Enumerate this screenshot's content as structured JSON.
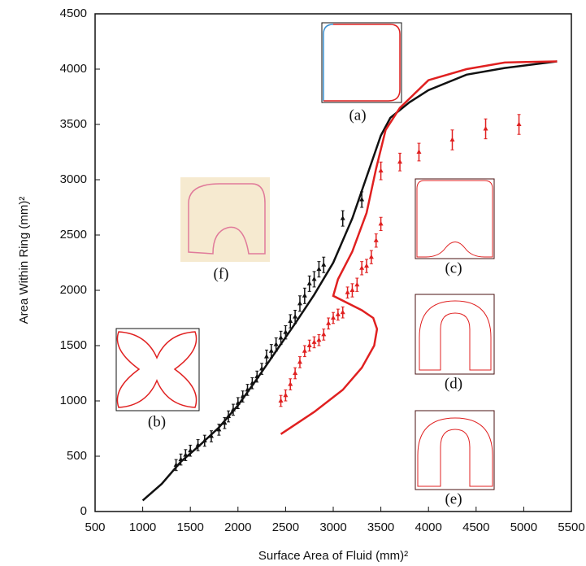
{
  "chart_data": {
    "type": "scatter",
    "x_label": "Surface Area of Fluid (mm)²",
    "y_label": "Area Within Ring (mm)²",
    "xlim": [
      500,
      5500
    ],
    "ylim": [
      0,
      4500
    ],
    "xticks": [
      500,
      1000,
      1500,
      2000,
      2500,
      3000,
      3500,
      4000,
      4500,
      5000,
      5500
    ],
    "yticks": [
      0,
      500,
      1000,
      1500,
      2000,
      2500,
      3000,
      3500,
      4000,
      4500
    ],
    "annotations": [
      "(a)",
      "(b)",
      "(c)",
      "(d)",
      "(e)",
      "(f)"
    ],
    "series": [
      {
        "color": "#111111",
        "x": [
          1000,
          1200,
          1400,
          1600,
          1800,
          2000,
          2200,
          2400,
          2600,
          2800,
          3000,
          3200,
          3400,
          3500,
          3600,
          3800,
          4000,
          4400,
          4800,
          5350
        ],
        "values": [
          100,
          250,
          450,
          600,
          760,
          960,
          1200,
          1450,
          1700,
          1960,
          2250,
          2650,
          3150,
          3400,
          3560,
          3700,
          3810,
          3950,
          4010,
          4070
        ]
      },
      {
        "color": "#e02020",
        "x": [
          2450,
          2800,
          3100,
          3300,
          3430,
          3460,
          3420,
          3300,
          3000,
          3050,
          3200,
          3350,
          3450,
          3550,
          3700,
          4000,
          4400,
          4800,
          5350
        ],
        "values": [
          700,
          900,
          1100,
          1300,
          1500,
          1650,
          1750,
          1820,
          1950,
          2100,
          2350,
          2700,
          3100,
          3450,
          3650,
          3900,
          4000,
          4060,
          4070
        ]
      },
      {
        "color": "#111111",
        "x": [
          1350,
          1400,
          1450,
          1500,
          1580,
          1650,
          1720,
          1800,
          1860,
          1900,
          1950,
          2000,
          2050,
          2100,
          2150,
          2200,
          2250,
          2300,
          2350,
          2400,
          2450,
          2500,
          2550,
          2600,
          2650,
          2700,
          2750,
          2800,
          2850,
          2900,
          3100,
          3300
        ],
        "values": [
          420,
          470,
          510,
          550,
          600,
          640,
          680,
          740,
          800,
          860,
          920,
          980,
          1040,
          1100,
          1160,
          1220,
          1290,
          1400,
          1450,
          1510,
          1570,
          1620,
          1720,
          1760,
          1880,
          1950,
          2060,
          2100,
          2190,
          2230,
          2650,
          2820
        ],
        "errors": [
          50,
          50,
          50,
          50,
          50,
          50,
          50,
          50,
          50,
          50,
          50,
          50,
          50,
          50,
          50,
          50,
          50,
          60,
          60,
          60,
          60,
          60,
          60,
          60,
          70,
          70,
          70,
          70,
          70,
          70,
          70,
          70
        ]
      },
      {
        "color": "#e02020",
        "x": [
          2450,
          2500,
          2550,
          2600,
          2650,
          2700,
          2750,
          2800,
          2850,
          2900,
          2950,
          3000,
          3050,
          3100,
          3150,
          3200,
          3250,
          3300,
          3350,
          3400,
          3450,
          3500,
          3500,
          3700,
          3900,
          4250,
          4600,
          4950
        ],
        "values": [
          1000,
          1050,
          1150,
          1250,
          1350,
          1450,
          1500,
          1530,
          1550,
          1600,
          1700,
          1750,
          1780,
          1800,
          1980,
          2000,
          2050,
          2200,
          2220,
          2300,
          2450,
          2600,
          3080,
          3160,
          3250,
          3360,
          3460,
          3500
        ],
        "errors": [
          50,
          50,
          50,
          50,
          50,
          50,
          50,
          50,
          50,
          50,
          50,
          50,
          50,
          50,
          50,
          60,
          60,
          60,
          60,
          60,
          60,
          60,
          80,
          80,
          80,
          90,
          90,
          90
        ]
      }
    ]
  }
}
